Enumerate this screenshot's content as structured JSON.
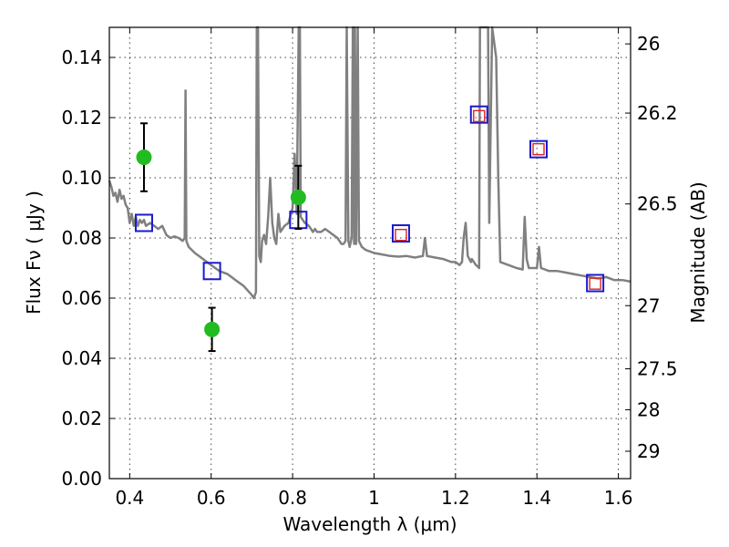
{
  "chart_data": {
    "type": "scatter",
    "xlabel": "Wavelength  λ (μm)",
    "ylabel": "Flux  Fν ( μJy )",
    "y2label": "Magnitude (AB)",
    "xlim": [
      0.35,
      1.63
    ],
    "ylim": [
      0.0,
      0.15
    ],
    "grid": true,
    "x_ticks": [
      0.4,
      0.6,
      0.8,
      1.0,
      1.2,
      1.4,
      1.6
    ],
    "x_tick_labels": [
      "0.4",
      "0.6",
      "0.8",
      "1",
      "1.2",
      "1.4",
      "1.6"
    ],
    "y_ticks": [
      0.0,
      0.02,
      0.04,
      0.06,
      0.08,
      0.1,
      0.12,
      0.14
    ],
    "y_tick_labels": [
      "0.00",
      "0.02",
      "0.04",
      "0.06",
      "0.08",
      "0.10",
      "0.12",
      "0.14"
    ],
    "y2_ticks": [
      {
        "flux": 0.1445,
        "label": "26"
      },
      {
        "flux": 0.1215,
        "label": "26.2"
      },
      {
        "flux": 0.0913,
        "label": "26.5"
      },
      {
        "flux": 0.0575,
        "label": "27"
      },
      {
        "flux": 0.0365,
        "label": "27.5"
      },
      {
        "flux": 0.0229,
        "label": "28"
      },
      {
        "flux": 0.0091,
        "label": "29"
      }
    ],
    "observed": {
      "x": [
        0.435,
        0.602,
        0.814
      ],
      "y": [
        0.1068,
        0.0496,
        0.0935
      ],
      "yerr": [
        0.0113,
        0.0072,
        0.0105
      ],
      "color": "#22bb22"
    },
    "model_photometry": {
      "x": [
        0.435,
        0.602,
        0.814,
        1.066,
        1.258,
        1.404,
        1.543
      ],
      "y": [
        0.085,
        0.069,
        0.086,
        0.0815,
        0.121,
        0.1095,
        0.065
      ],
      "color": "#1a1acc"
    },
    "model_photometry_2": {
      "x": [
        1.066,
        1.258,
        1.404,
        1.543
      ],
      "y": [
        0.081,
        0.1205,
        0.1095,
        0.0648
      ],
      "color": "#dd2222"
    },
    "model_spectrum": {
      "color": "#808080",
      "points": [
        [
          0.35,
          0.099
        ],
        [
          0.355,
          0.097
        ],
        [
          0.36,
          0.094
        ],
        [
          0.365,
          0.095
        ],
        [
          0.37,
          0.092
        ],
        [
          0.375,
          0.096
        ],
        [
          0.38,
          0.093
        ],
        [
          0.385,
          0.094
        ],
        [
          0.39,
          0.091
        ],
        [
          0.395,
          0.09
        ],
        [
          0.4,
          0.085
        ],
        [
          0.405,
          0.088
        ],
        [
          0.41,
          0.084
        ],
        [
          0.415,
          0.087
        ],
        [
          0.42,
          0.084
        ],
        [
          0.425,
          0.086
        ],
        [
          0.43,
          0.085
        ],
        [
          0.435,
          0.086
        ],
        [
          0.44,
          0.084
        ],
        [
          0.45,
          0.085
        ],
        [
          0.46,
          0.084
        ],
        [
          0.47,
          0.083
        ],
        [
          0.48,
          0.084
        ],
        [
          0.49,
          0.081
        ],
        [
          0.5,
          0.08
        ],
        [
          0.51,
          0.0805
        ],
        [
          0.52,
          0.08
        ],
        [
          0.53,
          0.079
        ],
        [
          0.535,
          0.08
        ],
        [
          0.537,
          0.129
        ],
        [
          0.539,
          0.079
        ],
        [
          0.545,
          0.077
        ],
        [
          0.56,
          0.075
        ],
        [
          0.58,
          0.073
        ],
        [
          0.6,
          0.071
        ],
        [
          0.62,
          0.069
        ],
        [
          0.64,
          0.068
        ],
        [
          0.66,
          0.066
        ],
        [
          0.68,
          0.064
        ],
        [
          0.7,
          0.061
        ],
        [
          0.705,
          0.06
        ],
        [
          0.71,
          0.062
        ],
        [
          0.712,
          0.15
        ],
        [
          0.715,
          0.15
        ],
        [
          0.718,
          0.074
        ],
        [
          0.722,
          0.072
        ],
        [
          0.725,
          0.079
        ],
        [
          0.73,
          0.081
        ],
        [
          0.735,
          0.078
        ],
        [
          0.74,
          0.087
        ],
        [
          0.745,
          0.1
        ],
        [
          0.75,
          0.085
        ],
        [
          0.755,
          0.08
        ],
        [
          0.76,
          0.078
        ],
        [
          0.765,
          0.088
        ],
        [
          0.77,
          0.082
        ],
        [
          0.78,
          0.084
        ],
        [
          0.79,
          0.085
        ],
        [
          0.8,
          0.09
        ],
        [
          0.805,
          0.108
        ],
        [
          0.81,
          0.088
        ],
        [
          0.815,
          0.15
        ],
        [
          0.818,
          0.15
        ],
        [
          0.82,
          0.087
        ],
        [
          0.83,
          0.085
        ],
        [
          0.84,
          0.084
        ],
        [
          0.85,
          0.082
        ],
        [
          0.855,
          0.083
        ],
        [
          0.86,
          0.082
        ],
        [
          0.87,
          0.082
        ],
        [
          0.88,
          0.083
        ],
        [
          0.89,
          0.082
        ],
        [
          0.9,
          0.081
        ],
        [
          0.91,
          0.08
        ],
        [
          0.92,
          0.078
        ],
        [
          0.925,
          0.078
        ],
        [
          0.93,
          0.079
        ],
        [
          0.933,
          0.15
        ],
        [
          0.937,
          0.079
        ],
        [
          0.94,
          0.077
        ],
        [
          0.945,
          0.08
        ],
        [
          0.948,
          0.15
        ],
        [
          0.951,
          0.078
        ],
        [
          0.953,
          0.15
        ],
        [
          0.956,
          0.078
        ],
        [
          0.96,
          0.15
        ],
        [
          0.963,
          0.079
        ],
        [
          0.97,
          0.077
        ],
        [
          0.98,
          0.076
        ],
        [
          1.0,
          0.075
        ],
        [
          1.02,
          0.0745
        ],
        [
          1.04,
          0.074
        ],
        [
          1.06,
          0.0738
        ],
        [
          1.08,
          0.074
        ],
        [
          1.1,
          0.0735
        ],
        [
          1.12,
          0.074
        ],
        [
          1.125,
          0.08
        ],
        [
          1.13,
          0.074
        ],
        [
          1.15,
          0.0735
        ],
        [
          1.17,
          0.073
        ],
        [
          1.19,
          0.072
        ],
        [
          1.2,
          0.072
        ],
        [
          1.21,
          0.071
        ],
        [
          1.216,
          0.072
        ],
        [
          1.22,
          0.08
        ],
        [
          1.225,
          0.085
        ],
        [
          1.23,
          0.074
        ],
        [
          1.238,
          0.072
        ],
        [
          1.24,
          0.073
        ],
        [
          1.245,
          0.072
        ],
        [
          1.25,
          0.071
        ],
        [
          1.255,
          0.0705
        ],
        [
          1.258,
          0.07
        ],
        [
          1.26,
          0.15
        ],
        [
          1.28,
          0.15
        ],
        [
          1.283,
          0.085
        ],
        [
          1.29,
          0.15
        ],
        [
          1.3,
          0.14
        ],
        [
          1.305,
          0.1
        ],
        [
          1.31,
          0.072
        ],
        [
          1.33,
          0.071
        ],
        [
          1.35,
          0.07
        ],
        [
          1.365,
          0.0695
        ],
        [
          1.37,
          0.087
        ],
        [
          1.375,
          0.073
        ],
        [
          1.38,
          0.07
        ],
        [
          1.4,
          0.07
        ],
        [
          1.405,
          0.077
        ],
        [
          1.41,
          0.07
        ],
        [
          1.43,
          0.069
        ],
        [
          1.45,
          0.069
        ],
        [
          1.47,
          0.0685
        ],
        [
          1.49,
          0.068
        ],
        [
          1.51,
          0.0675
        ],
        [
          1.53,
          0.067
        ],
        [
          1.55,
          0.0665
        ],
        [
          1.57,
          0.067
        ],
        [
          1.59,
          0.066
        ],
        [
          1.61,
          0.066
        ],
        [
          1.63,
          0.0655
        ]
      ]
    }
  }
}
